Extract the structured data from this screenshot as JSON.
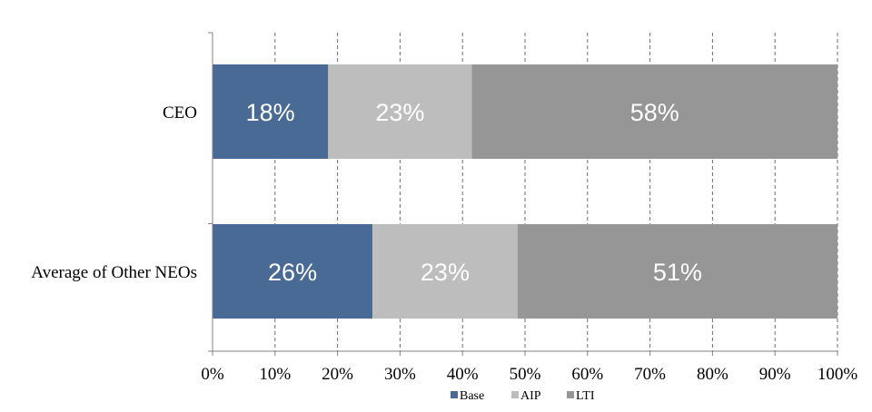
{
  "chart_data": {
    "type": "bar",
    "orientation": "horizontal",
    "stacked": true,
    "categories": [
      "CEO",
      "Average of Other NEOs"
    ],
    "series": [
      {
        "name": "Base",
        "values": [
          18.5,
          25.6
        ],
        "labels": [
          "18%",
          "26%"
        ],
        "color": "#4a6a96"
      },
      {
        "name": "AIP",
        "values": [
          23.0,
          23.2
        ],
        "labels": [
          "23%",
          "23%"
        ],
        "color": "#bdbdbd"
      },
      {
        "name": "LTI",
        "values": [
          58.5,
          51.2
        ],
        "labels": [
          "58%",
          "51%"
        ],
        "color": "#969696"
      }
    ],
    "xlim": [
      0,
      100
    ],
    "x_ticks": [
      "0%",
      "10%",
      "20%",
      "30%",
      "40%",
      "50%",
      "60%",
      "70%",
      "80%",
      "90%",
      "100%"
    ],
    "grid": "vertical dashed",
    "legend": "bottom"
  }
}
